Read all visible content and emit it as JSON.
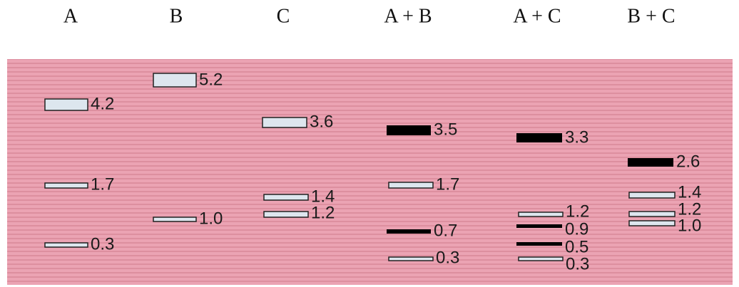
{
  "lanes": [
    {
      "label": "A",
      "bands": [
        {
          "size": "4.2",
          "style": "white"
        },
        {
          "size": "1.7",
          "style": "white"
        },
        {
          "size": "0.3",
          "style": "white"
        }
      ]
    },
    {
      "label": "B",
      "bands": [
        {
          "size": "5.2",
          "style": "white"
        },
        {
          "size": "1.0",
          "style": "white"
        }
      ]
    },
    {
      "label": "C",
      "bands": [
        {
          "size": "3.6",
          "style": "white"
        },
        {
          "size": "1.4",
          "style": "white"
        },
        {
          "size": "1.2",
          "style": "white"
        }
      ]
    },
    {
      "label": "A + B",
      "bands": [
        {
          "size": "3.5",
          "style": "black"
        },
        {
          "size": "1.7",
          "style": "white"
        },
        {
          "size": "0.7",
          "style": "black"
        },
        {
          "size": "0.3",
          "style": "white"
        }
      ]
    },
    {
      "label": "A + C",
      "bands": [
        {
          "size": "3.3",
          "style": "black"
        },
        {
          "size": "1.2",
          "style": "white"
        },
        {
          "size": "0.9",
          "style": "black"
        },
        {
          "size": "0.5",
          "style": "black"
        },
        {
          "size": "0.3",
          "style": "white"
        }
      ]
    },
    {
      "label": "B + C",
      "bands": [
        {
          "size": "2.6",
          "style": "black"
        },
        {
          "size": "1.4",
          "style": "white"
        },
        {
          "size": "1.2",
          "style": "white"
        },
        {
          "size": "1.0",
          "style": "white"
        }
      ]
    }
  ]
}
